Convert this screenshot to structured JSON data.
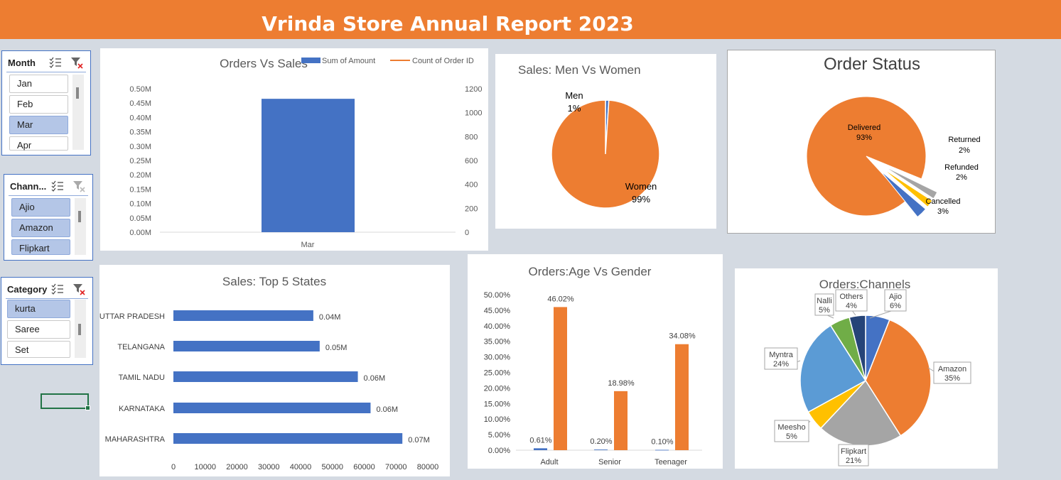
{
  "header": {
    "title": "Vrinda Store Annual Report 2023"
  },
  "slicers": [
    {
      "id": "month",
      "title": "Month",
      "items": [
        {
          "label": "Jan",
          "selected": false
        },
        {
          "label": "Feb",
          "selected": false
        },
        {
          "label": "Mar",
          "selected": true
        },
        {
          "label": "Apr",
          "selected": false
        }
      ]
    },
    {
      "id": "channel",
      "title": "Chann...",
      "items": [
        {
          "label": "Ajio",
          "selected": true
        },
        {
          "label": "Amazon",
          "selected": true
        },
        {
          "label": "Flipkart",
          "selected": true
        }
      ]
    },
    {
      "id": "category",
      "title": "Category",
      "items": [
        {
          "label": "kurta",
          "selected": true
        },
        {
          "label": "Saree",
          "selected": false
        },
        {
          "label": "Set",
          "selected": false
        }
      ]
    }
  ],
  "colors": {
    "blue": "#4472c4",
    "orange": "#ed7d31",
    "gray": "#a5a5a5",
    "yellow": "#ffc000",
    "lightblue": "#5b9bd5",
    "green": "#70ad47",
    "navy": "#264478"
  },
  "chart_data": [
    {
      "id": "orders_vs_sales",
      "type": "bar",
      "title": "Orders Vs Sales",
      "categories": [
        "Mar"
      ],
      "series": [
        {
          "name": "Sum of Amount",
          "values": [
            0.465
          ],
          "axis": "left",
          "unit": "M"
        },
        {
          "name": "Count of Order ID",
          "values": [
            0
          ],
          "axis": "right",
          "kind": "line"
        }
      ],
      "y_left_ticks": [
        "0.00M",
        "0.05M",
        "0.10M",
        "0.15M",
        "0.20M",
        "0.25M",
        "0.30M",
        "0.35M",
        "0.40M",
        "0.45M",
        "0.50M"
      ],
      "ylim_left": [
        0,
        0.5
      ],
      "y_right_ticks": [
        "0",
        "200",
        "400",
        "600",
        "800",
        "1000",
        "1200"
      ],
      "ylim_right": [
        0,
        1200
      ],
      "legend": "top-right"
    },
    {
      "id": "men_vs_women",
      "type": "pie",
      "title": "Sales: Men Vs Women",
      "slices": [
        {
          "name": "Men",
          "value": 1,
          "label": "1%"
        },
        {
          "name": "Women",
          "value": 99,
          "label": "99%"
        }
      ]
    },
    {
      "id": "order_status",
      "type": "pie",
      "title": "Order Status",
      "slices": [
        {
          "name": "Delivered",
          "value": 93,
          "label": "93%"
        },
        {
          "name": "Returned",
          "value": 2,
          "label": "2%"
        },
        {
          "name": "Refunded",
          "value": 2,
          "label": "2%"
        },
        {
          "name": "Cancelled",
          "value": 3,
          "label": "3%"
        }
      ]
    },
    {
      "id": "top5_states",
      "type": "bar",
      "orientation": "horizontal",
      "title": "Sales: Top 5  States",
      "categories": [
        "UTTAR PRADESH",
        "TELANGANA",
        "TAMIL NADU",
        "KARNATAKA",
        "MAHARASHTRA"
      ],
      "values": [
        44000,
        46000,
        58000,
        62000,
        72000
      ],
      "data_labels": [
        "0.04M",
        "0.05M",
        "0.06M",
        "0.06M",
        "0.07M"
      ],
      "x_ticks": [
        "0",
        "10000",
        "20000",
        "30000",
        "40000",
        "50000",
        "60000",
        "70000",
        "80000"
      ],
      "xlim": [
        0,
        80000
      ]
    },
    {
      "id": "age_vs_gender",
      "type": "bar",
      "title": "Orders:Age Vs Gender",
      "categories": [
        "Adult",
        "Senior",
        "Teenager"
      ],
      "series": [
        {
          "values": [
            0.61,
            0.2,
            0.1
          ],
          "labels": [
            "0.61%",
            "0.20%",
            "0.10%"
          ]
        },
        {
          "values": [
            46.02,
            18.98,
            34.08
          ],
          "labels": [
            "46.02%",
            "18.98%",
            "34.08%"
          ]
        }
      ],
      "y_ticks": [
        "0.00%",
        "5.00%",
        "10.00%",
        "15.00%",
        "20.00%",
        "25.00%",
        "30.00%",
        "35.00%",
        "40.00%",
        "45.00%",
        "50.00%"
      ],
      "ylim": [
        0,
        50
      ]
    },
    {
      "id": "channels",
      "type": "pie",
      "title": "Orders:Channels",
      "slices": [
        {
          "name": "Ajio",
          "value": 6,
          "label": "6%"
        },
        {
          "name": "Amazon",
          "value": 35,
          "label": "35%"
        },
        {
          "name": "Flipkart",
          "value": 21,
          "label": "21%"
        },
        {
          "name": "Meesho",
          "value": 5,
          "label": "5%"
        },
        {
          "name": "Myntra",
          "value": 24,
          "label": "24%"
        },
        {
          "name": "Nalli",
          "value": 5,
          "label": "5%"
        },
        {
          "name": "Others",
          "value": 4,
          "label": "4%"
        }
      ]
    }
  ]
}
